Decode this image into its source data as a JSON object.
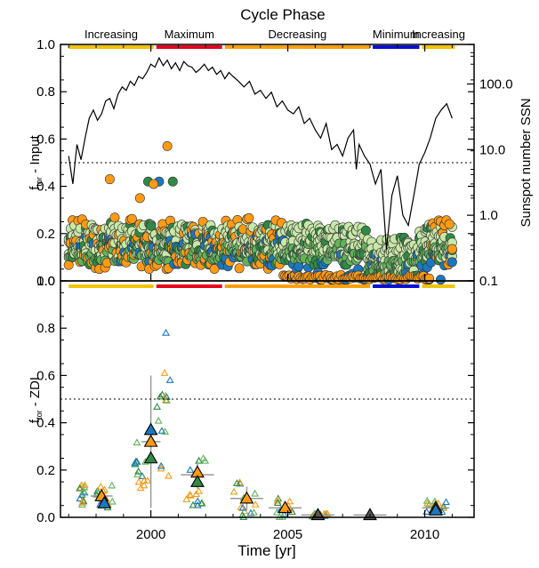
{
  "chart_data": {
    "type": "scatter",
    "header": "Cycle Phase",
    "xlabel": "Time [yr]",
    "xlim": [
      1996.7,
      2011.8
    ],
    "x_ticks": [
      "2000",
      "2005",
      "2010"
    ],
    "phases": [
      {
        "label": "Increasing",
        "start": 1997.0,
        "end": 2000.1,
        "color": "#f2c400"
      },
      {
        "label": "Maximum",
        "start": 2000.2,
        "end": 2002.6,
        "color": "#e8001c"
      },
      {
        "label": "Decreasing",
        "start": 2002.7,
        "end": 2008.0,
        "color": "#ff9f0a"
      },
      {
        "label": "Minimum",
        "start": 2008.1,
        "end": 2009.8,
        "color": "#0a10d0"
      },
      {
        "label": "Increasing",
        "start": 2009.9,
        "end": 2011.1,
        "color": "#f2c400"
      }
    ],
    "panels": [
      {
        "ylabel": "f_tor - Input",
        "ylabel_sub": "tor",
        "ylabel_main": "f",
        "ylabel_rest": " - Input",
        "ylim": [
          0.0,
          1.0
        ],
        "y_ticks": [
          "0.0",
          "0.2",
          "0.4",
          "0.6",
          "0.8",
          "1.0"
        ],
        "dotted_line": 0.5,
        "right_axis_label": "Sunspot number SSN",
        "right_axis_ticks": [
          "0.1",
          "1.0",
          "10.0",
          "100.0"
        ],
        "ssn_line": {
          "x": [
            1997.0,
            1997.15,
            1997.3,
            1997.45,
            1997.6,
            1997.75,
            1997.9,
            1998.05,
            1998.2,
            1998.35,
            1998.5,
            1998.65,
            1998.8,
            1998.95,
            1999.1,
            1999.25,
            1999.4,
            1999.55,
            1999.7,
            1999.85,
            2000.0,
            2000.15,
            2000.3,
            2000.45,
            2000.6,
            2000.75,
            2000.9,
            2001.05,
            2001.2,
            2001.35,
            2001.5,
            2001.65,
            2001.8,
            2001.95,
            2002.1,
            2002.25,
            2002.4,
            2002.55,
            2002.7,
            2002.85,
            2003.0,
            2003.2,
            2003.4,
            2003.6,
            2003.8,
            2004.0,
            2004.2,
            2004.4,
            2004.6,
            2004.8,
            2005.0,
            2005.2,
            2005.4,
            2005.6,
            2005.8,
            2006.0,
            2006.2,
            2006.4,
            2006.6,
            2006.8,
            2007.0,
            2007.2,
            2007.4,
            2007.5,
            2007.6,
            2007.8,
            2008.0,
            2008.2,
            2008.4,
            2008.6,
            2008.8,
            2009.0,
            2009.2,
            2009.4,
            2009.6,
            2009.8,
            2010.0,
            2010.2,
            2010.4,
            2010.6,
            2010.8,
            2011.0
          ],
          "y": [
            8,
            3,
            12,
            7,
            15,
            30,
            40,
            28,
            35,
            55,
            60,
            42,
            70,
            90,
            80,
            110,
            95,
            130,
            120,
            150,
            200,
            180,
            250,
            190,
            230,
            170,
            210,
            160,
            220,
            190,
            180,
            150,
            170,
            200,
            160,
            180,
            140,
            160,
            120,
            150,
            130,
            110,
            90,
            110,
            70,
            80,
            60,
            75,
            45,
            55,
            40,
            35,
            45,
            25,
            30,
            20,
            15,
            25,
            10,
            12,
            8,
            15,
            20,
            5,
            12,
            8,
            6,
            3,
            5,
            0.3,
            2,
            4,
            1,
            0.7,
            2,
            6,
            9,
            15,
            30,
            40,
            50,
            30
          ]
        },
        "series": [
          {
            "name": "light green",
            "color": "#c8e8a8",
            "values_range": "0.05-0.27"
          },
          {
            "name": "mid green",
            "color": "#62b35b",
            "values_range": "0.05-0.25"
          },
          {
            "name": "dark green",
            "color": "#2e8a46",
            "values_range": "0.05-0.40"
          },
          {
            "name": "blue",
            "color": "#1b78c0",
            "values_range": "0.0-0.42"
          },
          {
            "name": "orange",
            "color": "#ff9a14",
            "values_range": "0.0-0.57"
          }
        ]
      },
      {
        "ylabel": "f_tor - ZDI",
        "ylabel_sub": "tor",
        "ylabel_main": "f",
        "ylabel_rest": " - ZDI",
        "ylim": [
          0.0,
          1.0
        ],
        "y_ticks": [
          "0.0",
          "0.2",
          "0.4",
          "0.6",
          "0.8",
          "1.0"
        ],
        "dotted_line": 0.5,
        "means": [
          {
            "x": 1998.2,
            "y": 0.09,
            "color": "#ff9a14"
          },
          {
            "x": 1998.3,
            "y": 0.06,
            "color": "#1b78c0"
          },
          {
            "x": 2000.0,
            "y": 0.37,
            "color": "#1b78c0"
          },
          {
            "x": 2000.0,
            "y": 0.32,
            "color": "#ff9a14"
          },
          {
            "x": 2000.0,
            "y": 0.25,
            "color": "#2e8a46"
          },
          {
            "x": 2001.7,
            "y": 0.19,
            "color": "#ff9a14"
          },
          {
            "x": 2001.7,
            "y": 0.15,
            "color": "#2e8a46"
          },
          {
            "x": 2003.5,
            "y": 0.08,
            "color": "#ff9a14"
          },
          {
            "x": 2004.9,
            "y": 0.04,
            "color": "#ff9a14"
          },
          {
            "x": 2006.1,
            "y": 0.01,
            "color": "#555555"
          },
          {
            "x": 2008.0,
            "y": 0.01,
            "color": "#555555"
          },
          {
            "x": 2010.4,
            "y": 0.04,
            "color": "#ff9a14"
          },
          {
            "x": 2010.4,
            "y": 0.03,
            "color": "#1b78c0"
          }
        ]
      }
    ]
  }
}
